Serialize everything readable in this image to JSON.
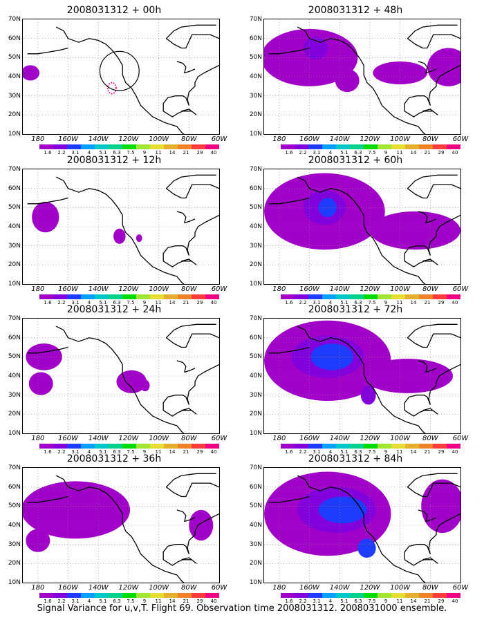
{
  "panels": [
    {
      "title": "2008031312 + 00h",
      "blobs": [
        {
          "lon": -185,
          "lat": 42,
          "rx": 6,
          "ry": 4,
          "level": 1
        }
      ],
      "circle": {
        "lon": -126,
        "lat": 43,
        "r": 13
      }
    },
    {
      "title": "2008031312 + 48h",
      "blobs": [
        {
          "lon": -160,
          "lat": 50,
          "rx": 32,
          "ry": 15,
          "level": 1
        },
        {
          "lon": -100,
          "lat": 42,
          "rx": 18,
          "ry": 6,
          "level": 1
        },
        {
          "lon": -68,
          "lat": 45,
          "rx": 14,
          "ry": 10,
          "level": 1
        },
        {
          "lon": -156,
          "lat": 55,
          "rx": 8,
          "ry": 6,
          "level": 2
        },
        {
          "lon": -135,
          "lat": 38,
          "rx": 8,
          "ry": 6,
          "level": 1
        }
      ]
    },
    {
      "title": "2008031312 + 12h",
      "blobs": [
        {
          "lon": -175,
          "lat": 45,
          "rx": 9,
          "ry": 8,
          "level": 1
        },
        {
          "lon": -126,
          "lat": 35,
          "rx": 4,
          "ry": 4,
          "level": 1
        },
        {
          "lon": -113,
          "lat": 34,
          "rx": 2,
          "ry": 2,
          "level": 1
        }
      ]
    },
    {
      "title": "2008031312 + 60h",
      "blobs": [
        {
          "lon": -150,
          "lat": 48,
          "rx": 40,
          "ry": 20,
          "level": 1
        },
        {
          "lon": -90,
          "lat": 38,
          "rx": 30,
          "ry": 10,
          "level": 1
        },
        {
          "lon": -150,
          "lat": 50,
          "rx": 14,
          "ry": 9,
          "level": 2
        },
        {
          "lon": -148,
          "lat": 50,
          "rx": 6,
          "ry": 5,
          "level": 3
        }
      ]
    },
    {
      "title": "2008031312 + 24h",
      "blobs": [
        {
          "lon": -176,
          "lat": 50,
          "rx": 12,
          "ry": 7,
          "level": 1
        },
        {
          "lon": -178,
          "lat": 36,
          "rx": 8,
          "ry": 6,
          "level": 1
        },
        {
          "lon": -118,
          "lat": 37,
          "rx": 10,
          "ry": 6,
          "level": 1
        },
        {
          "lon": -109,
          "lat": 35,
          "rx": 3,
          "ry": 3,
          "level": 1
        }
      ]
    },
    {
      "title": "2008031312 + 72h",
      "blobs": [
        {
          "lon": -148,
          "lat": 48,
          "rx": 42,
          "ry": 21,
          "level": 1
        },
        {
          "lon": -95,
          "lat": 40,
          "rx": 30,
          "ry": 9,
          "level": 1
        },
        {
          "lon": -148,
          "lat": 50,
          "rx": 24,
          "ry": 11,
          "level": 2
        },
        {
          "lon": -145,
          "lat": 50,
          "rx": 14,
          "ry": 7,
          "level": 3
        },
        {
          "lon": -121,
          "lat": 30,
          "rx": 5,
          "ry": 5,
          "level": 2
        }
      ]
    },
    {
      "title": "2008031312 + 36h",
      "blobs": [
        {
          "lon": -155,
          "lat": 48,
          "rx": 36,
          "ry": 15,
          "level": 1
        },
        {
          "lon": -180,
          "lat": 32,
          "rx": 8,
          "ry": 6,
          "level": 1
        },
        {
          "lon": -72,
          "lat": 40,
          "rx": 8,
          "ry": 8,
          "level": 1
        }
      ]
    },
    {
      "title": "2008031312 + 84h",
      "blobs": [
        {
          "lon": -148,
          "lat": 46,
          "rx": 42,
          "ry": 22,
          "level": 1
        },
        {
          "lon": -72,
          "lat": 50,
          "rx": 14,
          "ry": 14,
          "level": 1
        },
        {
          "lon": -142,
          "lat": 48,
          "rx": 26,
          "ry": 12,
          "level": 2
        },
        {
          "lon": -138,
          "lat": 48,
          "rx": 16,
          "ry": 7,
          "level": 3
        },
        {
          "lon": -122,
          "lat": 28,
          "rx": 6,
          "ry": 5,
          "level": 3
        }
      ]
    }
  ],
  "lat_labels": [
    "70N",
    "60N",
    "50N",
    "40N",
    "30N",
    "20N",
    "10N"
  ],
  "lon_labels": [
    "180",
    "160W",
    "140W",
    "120W",
    "100W",
    "80W",
    "60W"
  ],
  "colorbar_labels": [
    "1.6",
    "2.2",
    "3.1",
    "4",
    "5.1",
    "6.3",
    "7.5",
    "9",
    "11",
    "14",
    "21",
    "29",
    "40"
  ],
  "colorbar_colors": [
    "#a000c8",
    "#8200dc",
    "#1e3cff",
    "#00a0ff",
    "#00c8c8",
    "#00d28c",
    "#00dc00",
    "#a0e632",
    "#e6dc32",
    "#e6af2d",
    "#f08228",
    "#fa3c3c",
    "#f00082"
  ],
  "level_colors": [
    "#a000c8",
    "#8200dc",
    "#1e3cff",
    "#00c8c8"
  ],
  "caption": "Signal Variance for u,v,T. Flight 69. Observation time 2008031312. 2008031000 ensemble."
}
